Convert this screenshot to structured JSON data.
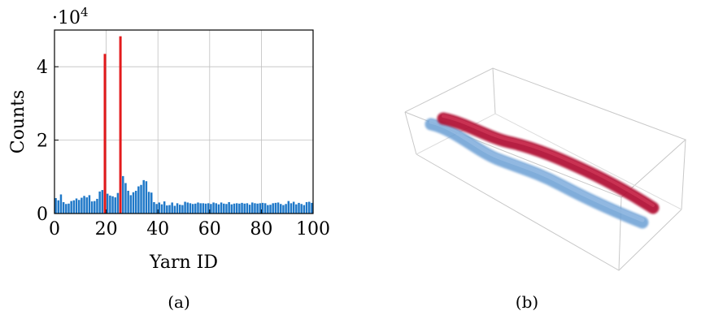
{
  "chart_data": [
    {
      "type": "bar",
      "xlabel": "Yarn ID",
      "ylabel": "Counts",
      "y_multiplier": {
        "base": "·10",
        "exponent": "4"
      },
      "xlim": [
        0,
        100
      ],
      "ylim": [
        0,
        50000
      ],
      "x_ticks": [
        "0",
        "20",
        "40",
        "60",
        "80",
        "100"
      ],
      "y_ticks": [
        "0",
        "2",
        "4"
      ],
      "grid": true,
      "colors": {
        "default": "#1f78c8",
        "highlight": "#e31a1c"
      },
      "highlighted_yarns": [
        20,
        26
      ],
      "series": [
        {
          "x": [
            1,
            2,
            3,
            4,
            5,
            6,
            7,
            8,
            9,
            10,
            11,
            12,
            13,
            14,
            15,
            16,
            17,
            18,
            19,
            20,
            21,
            22,
            23,
            24,
            25,
            26,
            27,
            28,
            29,
            30,
            31,
            32,
            33,
            34,
            35,
            36,
            37,
            38,
            39,
            40,
            41,
            42,
            43,
            44,
            45,
            46,
            47,
            48,
            49,
            50,
            51,
            52,
            53,
            54,
            55,
            56,
            57,
            58,
            59,
            60,
            61,
            62,
            63,
            64,
            65,
            66,
            67,
            68,
            69,
            70,
            71,
            72,
            73,
            74,
            75,
            76,
            77,
            78,
            79,
            80,
            81,
            82,
            83,
            84,
            85,
            86,
            87,
            88,
            89,
            90,
            91,
            92,
            93,
            94,
            95,
            96,
            97,
            98,
            99,
            100
          ],
          "values": [
            4200,
            3600,
            5200,
            3100,
            2600,
            2700,
            3400,
            3600,
            4100,
            3700,
            4300,
            4800,
            4400,
            5000,
            3300,
            3400,
            4000,
            6000,
            6400,
            43500,
            5400,
            4900,
            4700,
            4400,
            5600,
            48300,
            10200,
            8300,
            6200,
            5000,
            5800,
            6200,
            7400,
            7800,
            9100,
            8800,
            5900,
            5700,
            3100,
            2600,
            3000,
            2500,
            3300,
            2200,
            2300,
            3000,
            2100,
            2800,
            2400,
            2300,
            3200,
            3000,
            2800,
            2600,
            2700,
            3000,
            2800,
            2800,
            2700,
            2800,
            2600,
            3000,
            2800,
            2500,
            3000,
            2700,
            2600,
            3100,
            2500,
            2700,
            2800,
            2700,
            2900,
            2700,
            2800,
            2400,
            3000,
            2800,
            2700,
            2800,
            2900,
            2800,
            2300,
            2400,
            2800,
            2900,
            3000,
            2600,
            2300,
            2600,
            3400,
            2800,
            3200,
            2500,
            2900,
            2600,
            2300,
            3100,
            3200,
            2900
          ]
        }
      ]
    }
  ],
  "captions": {
    "left": "(a)",
    "right": "(b)"
  },
  "rendering": {
    "name": "3d-yarn-rendering",
    "yarn_colors": {
      "red": "#b01030",
      "blue": "#6b9fd4"
    }
  }
}
